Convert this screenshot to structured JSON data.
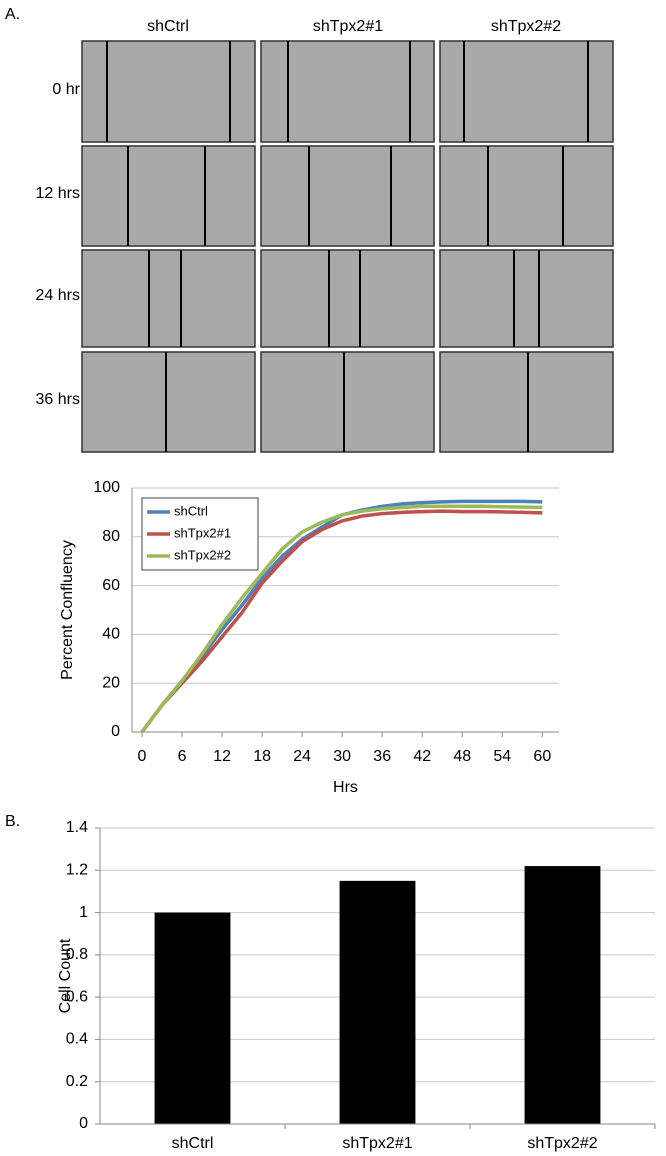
{
  "figure": {
    "panel_labels": [
      "A.",
      "B."
    ],
    "column_labels": [
      "shCtrl",
      "shTpx2#1",
      "shTpx2#2"
    ],
    "row_labels": [
      "0 hr",
      "12 hrs",
      "24 hrs",
      "36 hrs"
    ]
  },
  "chart_data": [
    {
      "type": "line",
      "x": [
        0,
        3,
        6,
        9,
        12,
        15,
        18,
        21,
        24,
        27,
        30,
        33,
        36,
        39,
        42,
        45,
        48,
        51,
        54,
        57,
        60
      ],
      "xlim": [
        -1.5,
        62.5
      ],
      "xticks": [
        0,
        6,
        12,
        18,
        24,
        30,
        36,
        42,
        48,
        54,
        60
      ],
      "ylim": [
        0,
        100
      ],
      "yticks": [
        0,
        20,
        40,
        60,
        80,
        100
      ],
      "xlabel": "Hrs",
      "ylabel": "Percent Confluency",
      "grid": true,
      "legend": "upper left",
      "series": [
        {
          "name": "shCtrl",
          "color": "#4f81bd",
          "values": [
            0,
            11,
            21,
            31,
            42,
            52,
            63,
            72,
            79,
            84,
            89,
            91,
            92.5,
            93.5,
            94,
            94.3,
            94.5,
            94.5,
            94.5,
            94.5,
            94.3
          ]
        },
        {
          "name": "shTpx2#1",
          "color": "#c0504d",
          "values": [
            0,
            11,
            20,
            29,
            39,
            49,
            61,
            70,
            78,
            83,
            86.5,
            88.5,
            89.5,
            90,
            90.3,
            90.5,
            90.3,
            90.3,
            90.2,
            90,
            89.8
          ]
        },
        {
          "name": "shTpx2#2",
          "color": "#9bbb59",
          "values": [
            0,
            11,
            21,
            32,
            44,
            55,
            65,
            75,
            82,
            86,
            89,
            90.5,
            91.5,
            92,
            92.5,
            92.5,
            92.5,
            92.5,
            92.3,
            92.2,
            92
          ]
        }
      ]
    },
    {
      "type": "bar",
      "categories": [
        "shCtrl",
        "shTpx2#1",
        "shTpx2#2"
      ],
      "values": [
        1,
        1.15,
        1.22
      ],
      "color": "#000000",
      "ylim": [
        0,
        1.4
      ],
      "yticks": [
        0,
        0.2,
        0.4,
        0.6,
        0.8,
        1,
        1.2,
        1.4
      ],
      "ylabel": "Cell Count",
      "grid": true
    }
  ]
}
